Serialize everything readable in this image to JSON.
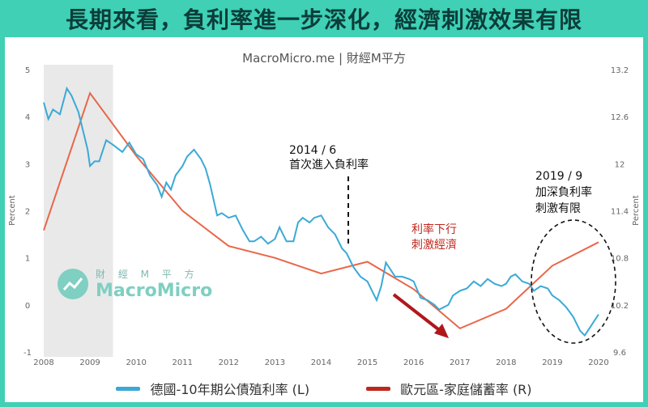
{
  "banner": {
    "title": "長期來看，負利率進一步深化，經濟刺激效果有限"
  },
  "site_label": "MacroMicro.me | 財經M平方",
  "watermark": {
    "top": "財 經 M 平 方",
    "brand": "MacroMicro"
  },
  "colors": {
    "frame": "#3fd0b5",
    "german": "#3ba9d6",
    "euro": "#e8674a",
    "arrow": "#b0171c"
  },
  "annotations": {
    "a2014_line1": "2014 / 6",
    "a2014_line2": "首次進入負利率",
    "a2019_line1": "2019 / 9",
    "a2019_line2": "加深負利率",
    "a2019_line3": "刺激有限",
    "red_line1": "利率下行",
    "red_line2": "刺激經濟"
  },
  "chart_data": {
    "type": "line",
    "x_ticks": [
      "2008",
      "2009",
      "2010",
      "2011",
      "2012",
      "2013",
      "2014",
      "2015",
      "2016",
      "2017",
      "2018",
      "2019",
      "2020"
    ],
    "left_axis": {
      "label": "Percent",
      "ticks": [
        "5",
        "4",
        "3",
        "2",
        "1",
        "0",
        "-1"
      ],
      "ylim": [
        -1,
        5
      ]
    },
    "right_axis": {
      "label": "Percent",
      "ticks": [
        "13.2",
        "12.6",
        "12",
        "11.4",
        "10.8",
        "10.2",
        "9.6"
      ],
      "ylim": [
        9.6,
        13.2
      ]
    },
    "shaded_recession": [
      "2008.0",
      "2009.5"
    ],
    "grid": false,
    "legend_position": "bottom",
    "series": [
      {
        "name": "德國-10年期公債殖利率 (L)",
        "axis": "left",
        "x": [
          2008.0,
          2008.1,
          2008.2,
          2008.35,
          2008.5,
          2008.6,
          2008.75,
          2008.85,
          2008.95,
          2009.0,
          2009.1,
          2009.2,
          2009.35,
          2009.5,
          2009.7,
          2009.85,
          2010.0,
          2010.15,
          2010.3,
          2010.45,
          2010.55,
          2010.65,
          2010.75,
          2010.85,
          2011.0,
          2011.1,
          2011.25,
          2011.4,
          2011.5,
          2011.6,
          2011.75,
          2011.85,
          2012.0,
          2012.15,
          2012.3,
          2012.45,
          2012.55,
          2012.7,
          2012.85,
          2013.0,
          2013.1,
          2013.25,
          2013.4,
          2013.5,
          2013.6,
          2013.75,
          2013.85,
          2014.0,
          2014.15,
          2014.3,
          2014.45,
          2014.55,
          2014.7,
          2014.85,
          2015.0,
          2015.1,
          2015.2,
          2015.3,
          2015.4,
          2015.5,
          2015.6,
          2015.75,
          2015.9,
          2016.0,
          2016.15,
          2016.3,
          2016.45,
          2016.55,
          2016.65,
          2016.75,
          2016.85,
          2017.0,
          2017.15,
          2017.3,
          2017.45,
          2017.6,
          2017.75,
          2017.9,
          2018.0,
          2018.1,
          2018.2,
          2018.35,
          2018.5,
          2018.6,
          2018.75,
          2018.9,
          2019.0,
          2019.15,
          2019.3,
          2019.45,
          2019.6,
          2019.7,
          2019.8,
          2019.9,
          2020.0
        ],
        "values": [
          4.3,
          3.95,
          4.15,
          4.05,
          4.6,
          4.45,
          4.1,
          3.7,
          3.3,
          2.95,
          3.05,
          3.05,
          3.5,
          3.4,
          3.25,
          3.45,
          3.2,
          3.1,
          2.75,
          2.55,
          2.3,
          2.6,
          2.45,
          2.75,
          2.95,
          3.15,
          3.3,
          3.1,
          2.9,
          2.55,
          1.9,
          1.95,
          1.85,
          1.9,
          1.6,
          1.35,
          1.35,
          1.45,
          1.3,
          1.4,
          1.65,
          1.35,
          1.35,
          1.75,
          1.85,
          1.75,
          1.85,
          1.9,
          1.65,
          1.5,
          1.2,
          1.1,
          0.8,
          0.6,
          0.5,
          0.3,
          0.1,
          0.4,
          0.9,
          0.75,
          0.6,
          0.6,
          0.55,
          0.5,
          0.15,
          0.1,
          0.0,
          -0.1,
          -0.05,
          0.0,
          0.2,
          0.3,
          0.35,
          0.5,
          0.4,
          0.55,
          0.45,
          0.4,
          0.45,
          0.6,
          0.65,
          0.5,
          0.45,
          0.3,
          0.4,
          0.35,
          0.2,
          0.1,
          -0.05,
          -0.25,
          -0.55,
          -0.65,
          -0.5,
          -0.35,
          -0.2
        ]
      },
      {
        "name": "歐元區-家庭儲蓄率 (R)",
        "axis": "right",
        "x": [
          2008.0,
          2009.0,
          2010.0,
          2011.0,
          2012.0,
          2013.0,
          2014.0,
          2015.0,
          2016.0,
          2017.0,
          2018.0,
          2019.0,
          2020.0
        ],
        "values": [
          11.15,
          12.9,
          12.1,
          11.4,
          10.95,
          10.8,
          10.6,
          10.75,
          10.4,
          9.9,
          10.15,
          10.7,
          11.0
        ]
      }
    ]
  }
}
